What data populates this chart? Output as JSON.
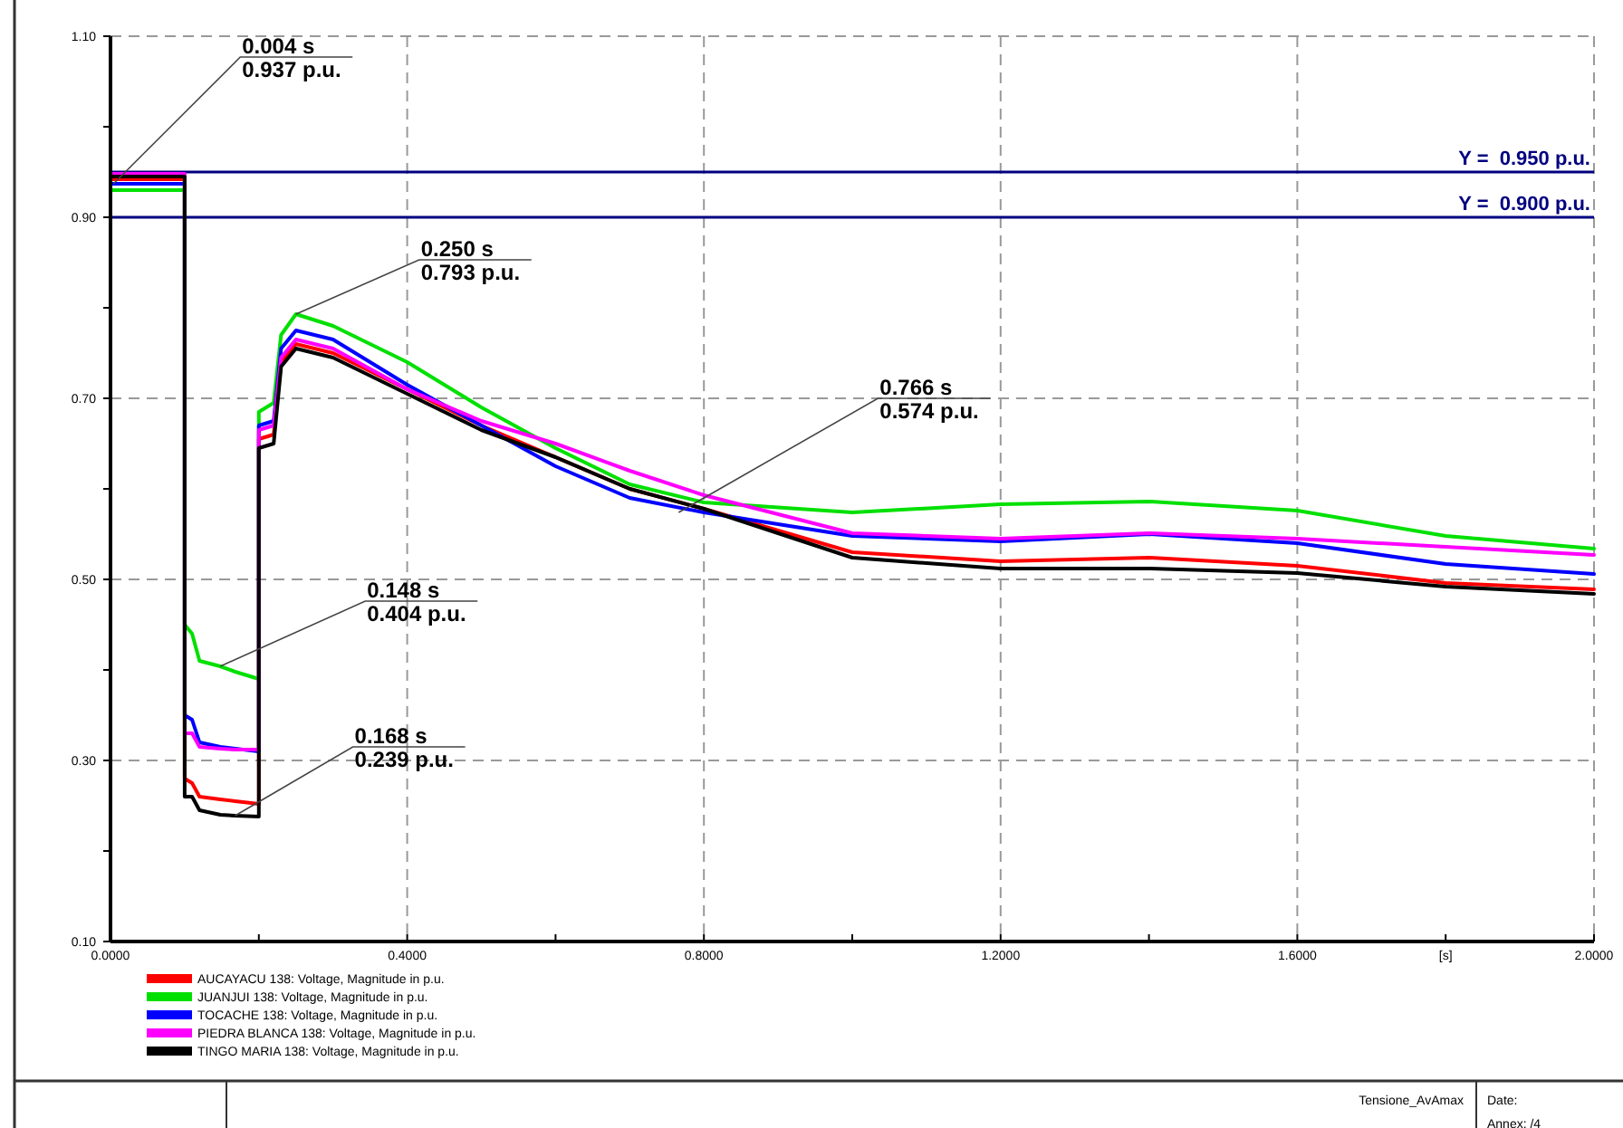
{
  "chart_data": {
    "type": "line",
    "xlabel": "[s]",
    "x": [
      0,
      0.1,
      0.1,
      0.11,
      0.12,
      0.148,
      0.168,
      0.2,
      0.2,
      0.22,
      0.23,
      0.25,
      0.3,
      0.4,
      0.5,
      0.6,
      0.7,
      0.8,
      1.0,
      1.2,
      1.4,
      1.6,
      1.8,
      2.0
    ],
    "series": [
      {
        "name": "AUCAYACU 138: Voltage, Magnitude in p.u.",
        "color": "#ff0000",
        "values": [
          0.942,
          0.942,
          0.28,
          0.275,
          0.26,
          0.257,
          0.255,
          0.252,
          0.655,
          0.66,
          0.74,
          0.76,
          0.75,
          0.71,
          0.67,
          0.635,
          0.6,
          0.578,
          0.53,
          0.52,
          0.524,
          0.515,
          0.496,
          0.489
        ]
      },
      {
        "name": "JUANJUI 138: Voltage, Magnitude in p.u.",
        "color": "#00e000",
        "values": [
          0.93,
          0.93,
          0.45,
          0.44,
          0.41,
          0.404,
          0.398,
          0.39,
          0.685,
          0.695,
          0.77,
          0.793,
          0.78,
          0.74,
          0.69,
          0.645,
          0.605,
          0.585,
          0.574,
          0.583,
          0.586,
          0.576,
          0.548,
          0.534
        ]
      },
      {
        "name": "TOCACHE 138: Voltage, Magnitude in p.u.",
        "color": "#0000ff",
        "values": [
          0.937,
          0.937,
          0.35,
          0.345,
          0.32,
          0.315,
          0.313,
          0.31,
          0.67,
          0.675,
          0.755,
          0.775,
          0.765,
          0.715,
          0.67,
          0.625,
          0.59,
          0.574,
          0.548,
          0.542,
          0.55,
          0.54,
          0.517,
          0.506
        ]
      },
      {
        "name": "PIEDRA BLANCA 138: Voltage, Magnitude in p.u.",
        "color": "#ff00ff",
        "values": [
          0.948,
          0.948,
          0.33,
          0.33,
          0.315,
          0.313,
          0.312,
          0.312,
          0.665,
          0.67,
          0.745,
          0.765,
          0.755,
          0.71,
          0.675,
          0.65,
          0.62,
          0.593,
          0.551,
          0.545,
          0.551,
          0.545,
          0.536,
          0.527
        ]
      },
      {
        "name": "TINGO MARIA 138: Voltage, Magnitude in p.u.",
        "color": "#000000",
        "values": [
          0.945,
          0.945,
          0.26,
          0.26,
          0.245,
          0.24,
          0.239,
          0.238,
          0.645,
          0.65,
          0.735,
          0.755,
          0.745,
          0.705,
          0.665,
          0.635,
          0.6,
          0.578,
          0.524,
          0.512,
          0.512,
          0.507,
          0.492,
          0.484
        ]
      }
    ],
    "xlim": [
      0,
      2.0
    ],
    "xticks": [
      {
        "value": 0,
        "label": "0.0000"
      },
      {
        "value": 0.2,
        "label": null
      },
      {
        "value": 0.4,
        "label": "0.4000"
      },
      {
        "value": 0.6,
        "label": null
      },
      {
        "value": 0.8,
        "label": "0.8000"
      },
      {
        "value": 1.0,
        "label": null
      },
      {
        "value": 1.2,
        "label": "1.2000"
      },
      {
        "value": 1.4,
        "label": null
      },
      {
        "value": 1.6,
        "label": "1.6000"
      },
      {
        "value": 1.8,
        "label": null
      },
      {
        "value": 2.0,
        "label": "2.0000"
      }
    ],
    "ylim": [
      0.1,
      1.1
    ],
    "yticks": [
      {
        "value": 0.1,
        "label": "0.10"
      },
      {
        "value": 0.2,
        "label": null
      },
      {
        "value": 0.3,
        "label": "0.30"
      },
      {
        "value": 0.4,
        "label": null
      },
      {
        "value": 0.5,
        "label": "0.50"
      },
      {
        "value": 0.6,
        "label": null
      },
      {
        "value": 0.7,
        "label": "0.70"
      },
      {
        "value": 0.8,
        "label": null
      },
      {
        "value": 0.9,
        "label": "0.90"
      },
      {
        "value": 1.0,
        "label": null
      },
      {
        "value": 1.1,
        "label": "1.10"
      }
    ],
    "ref_lines": [
      {
        "axis": "y",
        "value": 0.95,
        "label": "Y =  0.950 p.u.",
        "color": "#000080"
      },
      {
        "axis": "y",
        "value": 0.9,
        "label": "Y =  0.900 p.u.",
        "color": "#000080"
      }
    ],
    "annotations": [
      {
        "text": "0.004 s\n0.937 p.u.",
        "x": 0.004,
        "y": 0.937
      },
      {
        "text": "0.250 s\n0.793 p.u.",
        "x": 0.25,
        "y": 0.793
      },
      {
        "text": "0.148 s\n0.404 p.u.",
        "x": 0.148,
        "y": 0.404
      },
      {
        "text": "0.168 s\n0.239 p.u.",
        "x": 0.168,
        "y": 0.239
      },
      {
        "text": "0.766 s\n0.574 p.u.",
        "x": 0.766,
        "y": 0.574
      },
      "Tensione_AvAmax",
      "Date:",
      "Annex:  /4"
    ],
    "grid": true,
    "legend": "bottom left",
    "line_style": "solid",
    "marker": "none"
  }
}
